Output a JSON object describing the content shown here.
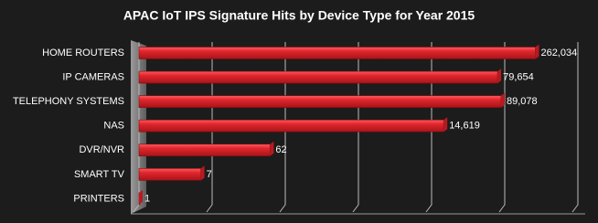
{
  "chart_data": {
    "type": "bar",
    "orientation": "horizontal",
    "title": "APAC IoT IPS Signature Hits by Device Type for Year 2015",
    "categories": [
      "HOME ROUTERS",
      "IP CAMERAS",
      "TELEPHONY SYSTEMS",
      "NAS",
      "DVR/NVR",
      "SMART TV",
      "PRINTERS"
    ],
    "values": [
      262034,
      79654,
      89078,
      14619,
      62,
      7,
      1
    ],
    "value_labels": [
      "262,034",
      "79,654",
      "89,078",
      "14,619",
      "62",
      "7",
      "1"
    ],
    "color": "#d8232a",
    "log_scale": true,
    "xlim": [
      1,
      1000000
    ],
    "xticks": [
      1,
      10,
      100,
      1000,
      10000,
      100000,
      1000000
    ],
    "grid": true
  }
}
